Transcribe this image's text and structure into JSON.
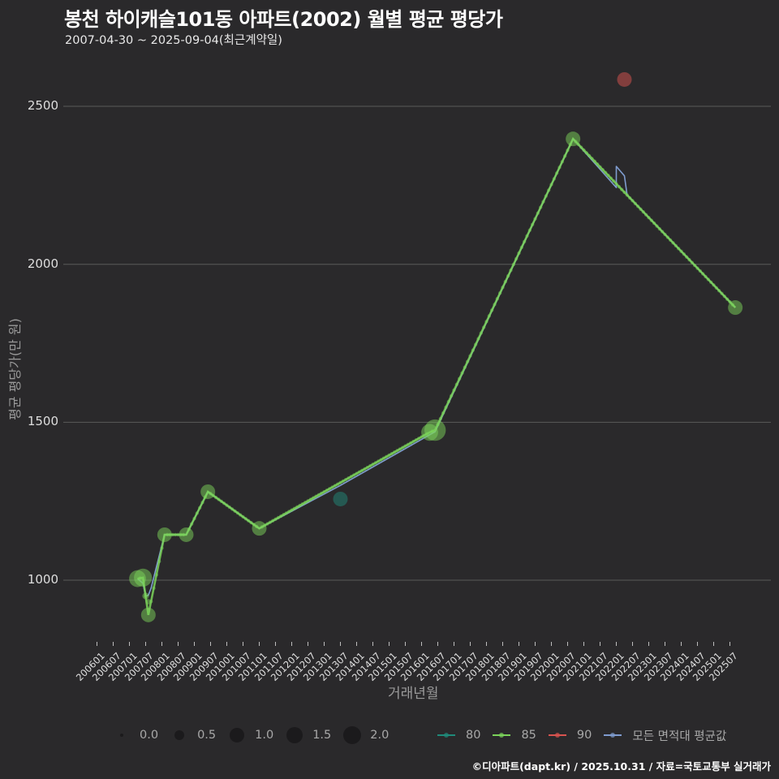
{
  "header": {
    "title": "봉천 하이캐슬101동 아파트(2002) 월별 평균 평당가",
    "subtitle": "2007-04-30 ~ 2025-09-04(최근계약일)"
  },
  "axes": {
    "xlabel": "거래년월",
    "ylabel": "평균 평당가(만 원)",
    "yticks": [
      "1000",
      "1500",
      "2000",
      "2500"
    ],
    "xticks": [
      "200601",
      "200607",
      "200701",
      "200707",
      "200801",
      "200807",
      "200901",
      "200907",
      "201001",
      "201007",
      "201101",
      "201107",
      "201201",
      "201207",
      "201301",
      "201307",
      "201401",
      "201407",
      "201501",
      "201507",
      "201601",
      "201607",
      "201701",
      "201707",
      "201801",
      "201807",
      "201901",
      "201907",
      "202001",
      "202007",
      "202101",
      "202107",
      "202201",
      "202207",
      "202301",
      "202307",
      "202401",
      "202407",
      "202501",
      "202507"
    ]
  },
  "legend": {
    "size": [
      {
        "label": "0.0",
        "r": 2
      },
      {
        "label": "0.5",
        "r": 6
      },
      {
        "label": "1.0",
        "r": 9
      },
      {
        "label": "1.5",
        "r": 10
      },
      {
        "label": "2.0",
        "r": 11
      }
    ],
    "color": [
      {
        "label": "80",
        "color": "#1f8a7a"
      },
      {
        "label": "85",
        "color": "#7bd35a"
      },
      {
        "label": "90",
        "color": "#d9534f"
      },
      {
        "label": "모든 면적대 평균값",
        "color": "#7f9ccf"
      }
    ]
  },
  "footer": {
    "credit": "©디아파트(dapt.kr) / 2025.10.31 / 자료=국토교통부 실거래가"
  },
  "colors": {
    "background": "#2a292b",
    "grid": "#5a5a5a",
    "s80": "#1f8a7a",
    "s85": "#7bd35a",
    "s90": "#d9534f",
    "avg": "#7f9ccf"
  },
  "chart_data": {
    "type": "line",
    "title": "봉천 하이캐슬101동 아파트(2002) 월별 평균 평당가",
    "subtitle": "2007-04-30 ~ 2025-09-04(최근계약일)",
    "xlabel": "거래년월",
    "ylabel": "평균 평당가(만 원)",
    "ylim": [
      790,
      2650
    ],
    "yticks": [
      1000,
      1500,
      2000,
      2500
    ],
    "grid": true,
    "legend_position": "bottom",
    "size_legend_title": "",
    "size_legend": [
      0.0,
      0.5,
      1.0,
      1.5,
      2.0
    ],
    "series": [
      {
        "name": "80",
        "color": "#1f8a7a",
        "points": [
          {
            "x": "2013-07",
            "y": 1257,
            "size": 1.0
          }
        ]
      },
      {
        "name": "85",
        "color": "#7bd35a",
        "points": [
          {
            "x": "2007-04",
            "y": 1005,
            "size": 1.2
          },
          {
            "x": "2007-06",
            "y": 1008,
            "size": 1.3
          },
          {
            "x": "2007-07",
            "y": 950,
            "size": 0.3
          },
          {
            "x": "2007-08",
            "y": 932,
            "size": 0.2
          },
          {
            "x": "2007-08",
            "y": 890,
            "size": 1.0
          },
          {
            "x": "2008-02",
            "y": 1144,
            "size": 1.0
          },
          {
            "x": "2008-10",
            "y": 1144,
            "size": 1.0
          },
          {
            "x": "2009-06",
            "y": 1280,
            "size": 1.0
          },
          {
            "x": "2011-01",
            "y": 1164,
            "size": 1.0
          },
          {
            "x": "2016-04",
            "y": 1468,
            "size": 1.2
          },
          {
            "x": "2016-06",
            "y": 1475,
            "size": 1.6
          },
          {
            "x": "2020-09",
            "y": 2397,
            "size": 1.0
          },
          {
            "x": "2025-09",
            "y": 1863,
            "size": 1.0
          }
        ]
      },
      {
        "name": "90",
        "color": "#d9534f",
        "points": [
          {
            "x": "2022-04",
            "y": 2585,
            "size": 1.0
          }
        ]
      },
      {
        "name": "모든 면적대 평균값",
        "color": "#7f9ccf",
        "points": [
          {
            "x": "2007-04",
            "y": 1005
          },
          {
            "x": "2007-06",
            "y": 990
          },
          {
            "x": "2007-07",
            "y": 950
          },
          {
            "x": "2007-08",
            "y": 952
          },
          {
            "x": "2007-09",
            "y": 975
          },
          {
            "x": "2008-02",
            "y": 1144
          },
          {
            "x": "2008-10",
            "y": 1144
          },
          {
            "x": "2009-06",
            "y": 1280
          },
          {
            "x": "2011-01",
            "y": 1164
          },
          {
            "x": "2013-07",
            "y": 1300
          },
          {
            "x": "2016-06",
            "y": 1470
          },
          {
            "x": "2020-09",
            "y": 2397
          },
          {
            "x": "2022-01",
            "y": 2243
          },
          {
            "x": "2022-01",
            "y": 2310
          },
          {
            "x": "2022-04",
            "y": 2280
          },
          {
            "x": "2022-05",
            "y": 2220
          },
          {
            "x": "2025-09",
            "y": 1863
          }
        ]
      }
    ]
  }
}
